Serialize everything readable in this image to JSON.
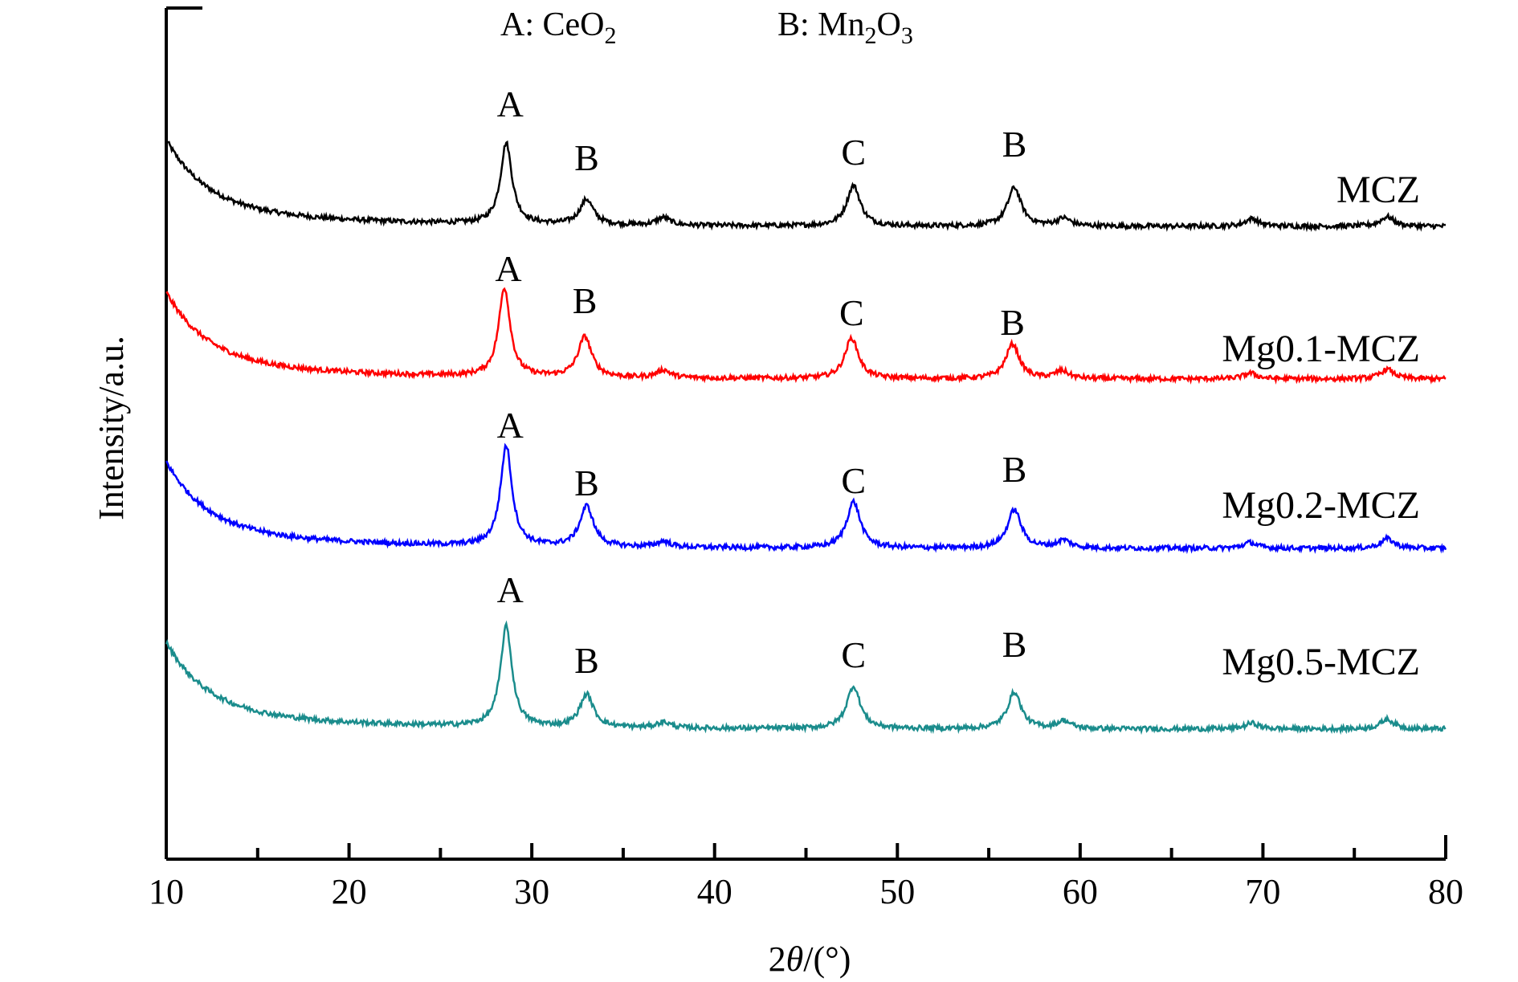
{
  "chart_data": {
    "type": "line",
    "xlabel_prefix": "2",
    "xlabel_theta": "θ",
    "xlabel_suffix": "/(°)",
    "ylabel": "Intensity/a.u.",
    "xlim": [
      10,
      80
    ],
    "x_ticks": [
      10,
      20,
      30,
      40,
      50,
      60,
      70,
      80
    ],
    "x_tick_labels": [
      "10",
      "20",
      "30",
      "40",
      "50",
      "60",
      "70",
      "80"
    ],
    "y_ticks": false,
    "grid": false,
    "phase_legend": [
      {
        "prefix": "A: CeO",
        "sub": "2"
      },
      {
        "prefix": "B: Mn",
        "sub": "2",
        "mid": "O",
        "sub2": "3"
      }
    ],
    "peak_positions": {
      "A": 28.6,
      "B1": 33.0,
      "C": 47.6,
      "B2": 56.4
    },
    "series": [
      {
        "name": "MCZ",
        "color": "#000000",
        "baseline": 0.0,
        "peaks": [
          {
            "x": 28.6,
            "height": 0.42,
            "label": "A"
          },
          {
            "x": 33.0,
            "height": 0.13,
            "label": "B"
          },
          {
            "x": 47.6,
            "height": 0.21,
            "label": "C"
          },
          {
            "x": 56.4,
            "height": 0.2,
            "label": "B"
          },
          {
            "x": 37.2,
            "height": 0.04
          },
          {
            "x": 59.1,
            "height": 0.04
          },
          {
            "x": 69.4,
            "height": 0.04
          },
          {
            "x": 76.8,
            "height": 0.05
          }
        ]
      },
      {
        "name": "Mg0.1-MCZ",
        "color": "#ff0000",
        "baseline": 0.0,
        "peaks": [
          {
            "x": 28.5,
            "height": 0.46,
            "label": "A"
          },
          {
            "x": 32.9,
            "height": 0.21,
            "label": "B"
          },
          {
            "x": 47.5,
            "height": 0.21,
            "label": "C"
          },
          {
            "x": 56.3,
            "height": 0.18,
            "label": "B"
          },
          {
            "x": 37.2,
            "height": 0.04
          },
          {
            "x": 59.0,
            "height": 0.04
          },
          {
            "x": 69.3,
            "height": 0.03
          },
          {
            "x": 76.8,
            "height": 0.05
          }
        ]
      },
      {
        "name": "Mg0.2-MCZ",
        "color": "#0000ff",
        "baseline": 0.0,
        "peaks": [
          {
            "x": 28.6,
            "height": 0.52,
            "label": "A"
          },
          {
            "x": 33.0,
            "height": 0.21,
            "label": "B"
          },
          {
            "x": 47.6,
            "height": 0.24,
            "label": "C"
          },
          {
            "x": 56.4,
            "height": 0.2,
            "label": "B"
          },
          {
            "x": 37.2,
            "height": 0.03
          },
          {
            "x": 59.1,
            "height": 0.04
          },
          {
            "x": 69.3,
            "height": 0.03
          },
          {
            "x": 76.8,
            "height": 0.05
          }
        ]
      },
      {
        "name": "Mg0.5-MCZ",
        "color": "#1a8c8c",
        "baseline": 0.0,
        "peaks": [
          {
            "x": 28.6,
            "height": 0.52,
            "label": "A"
          },
          {
            "x": 33.0,
            "height": 0.17,
            "label": "B"
          },
          {
            "x": 47.6,
            "height": 0.22,
            "label": "C"
          },
          {
            "x": 56.4,
            "height": 0.19,
            "label": "B"
          },
          {
            "x": 37.2,
            "height": 0.03
          },
          {
            "x": 59.1,
            "height": 0.04
          },
          {
            "x": 69.4,
            "height": 0.03
          },
          {
            "x": 76.8,
            "height": 0.05
          }
        ]
      }
    ]
  }
}
